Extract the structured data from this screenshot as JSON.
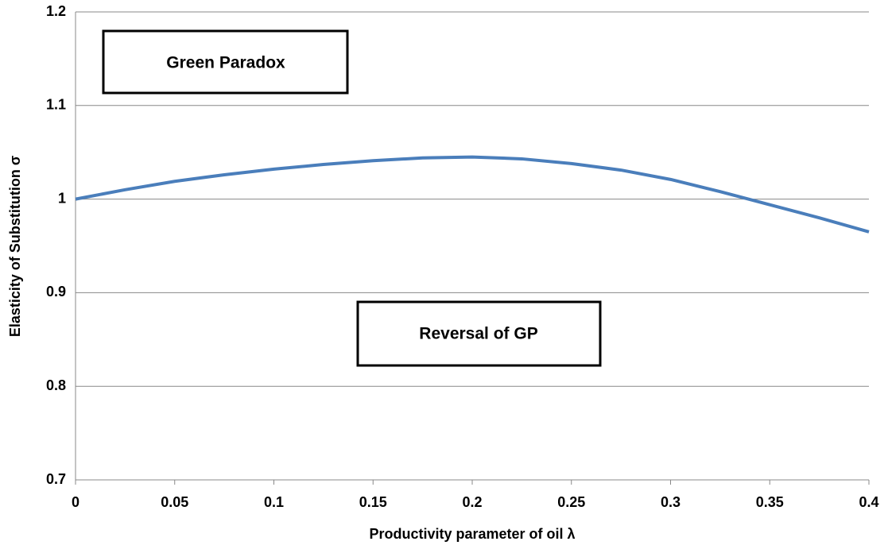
{
  "chart_data": {
    "type": "line",
    "x_label": "Productivity parameter of oil λ",
    "y_label": "Elasticity of Substitution σ",
    "annotations": [
      "Green Paradox",
      "Reversal of GP"
    ],
    "x": [
      0,
      0.025,
      0.05,
      0.075,
      0.1,
      0.125,
      0.15,
      0.175,
      0.2,
      0.225,
      0.25,
      0.275,
      0.3,
      0.325,
      0.35,
      0.375,
      0.4
    ],
    "series": [
      {
        "color": "#4a7ebb",
        "values": [
          1.0,
          1.01,
          1.019,
          1.026,
          1.032,
          1.037,
          1.041,
          1.044,
          1.045,
          1.043,
          1.038,
          1.031,
          1.021,
          1.008,
          0.994,
          0.98,
          0.965
        ]
      }
    ],
    "xlim": [
      0,
      0.4
    ],
    "xticks": [
      0,
      0.05,
      0.1,
      0.15,
      0.2,
      0.25,
      0.3,
      0.35,
      0.4
    ],
    "ylim": [
      0.7,
      1.2
    ],
    "yticks": [
      0.7,
      0.8,
      0.9,
      1,
      1.1,
      1.2
    ],
    "grid": true
  }
}
